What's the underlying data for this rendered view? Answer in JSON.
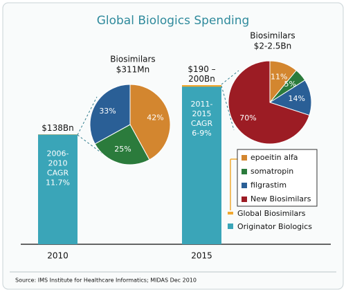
{
  "chart_data": {
    "type": "bar",
    "title": "Global Biologics Spending",
    "categories": [
      "2010",
      "2015"
    ],
    "series_name": "Originator Biologics",
    "values": [
      138,
      200
    ],
    "value_labels": [
      "$138Bn",
      "$190 – 200Bn"
    ],
    "color": "#3aa5b8",
    "notes": [
      [
        "2006-",
        "2010",
        "CAGR",
        "11.7%"
      ],
      [
        "2011-",
        "2015",
        "CAGR",
        "6-9%"
      ]
    ],
    "overlay": {
      "name": "Global Biosimilars",
      "values": [
        0.311,
        2
      ],
      "color": "#f0a830"
    },
    "pie_legend": [
      {
        "name": "epoeitin alfa",
        "color": "#d3862f"
      },
      {
        "name": "somatropin",
        "color": "#2b7b3c"
      },
      {
        "name": "filgrastim",
        "color": "#2a5f96"
      },
      {
        "name": "New Biosimilars",
        "color": "#9c1c24"
      }
    ],
    "pies": [
      {
        "type": "pie",
        "title": [
          "Biosimilars",
          "$311Mn"
        ],
        "values": [
          42,
          25,
          33
        ],
        "value_labels": [
          "42%",
          "25%",
          "33%"
        ]
      },
      {
        "type": "pie",
        "title": [
          "Biosimilars",
          "$2-2.5Bn"
        ],
        "values": [
          11,
          5,
          14,
          70
        ],
        "value_labels": [
          "11%",
          "5%",
          "14%",
          "70%"
        ]
      }
    ],
    "source": "Source: IMS Institute for Healthcare Informatics; MIDAS Dec 2010"
  }
}
